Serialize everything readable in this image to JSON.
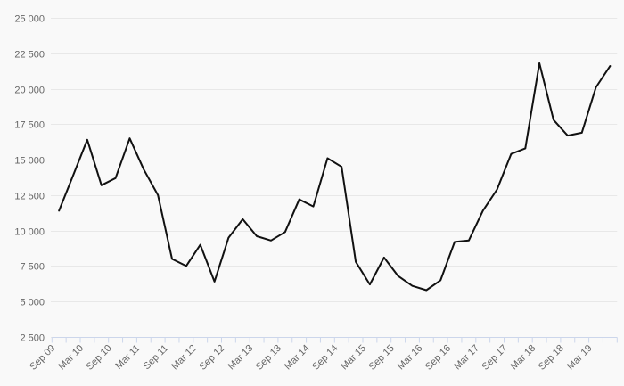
{
  "chart": {
    "background_color": "#f9f9f9",
    "grid_color": "#e8e8e8",
    "axis_color": "#ccd6eb",
    "label_color": "#666666",
    "series_color": "#111111"
  },
  "chart_data": {
    "type": "line",
    "title": "",
    "xlabel": "",
    "ylabel": "",
    "legend": false,
    "grid": true,
    "ylim": [
      2500,
      25000
    ],
    "y_ticks": [
      2500,
      5000,
      7500,
      10000,
      12500,
      15000,
      17500,
      20000,
      22500,
      25000
    ],
    "y_tick_labels": [
      "2 500",
      "5 000",
      "7 500",
      "10 000",
      "12 500",
      "15 000",
      "17 500",
      "20 000",
      "22 500",
      "25 000"
    ],
    "x_tick_labels": [
      "Sep 09",
      "Mar 10",
      "Sep 10",
      "Mar 11",
      "Sep 11",
      "Mar 12",
      "Sep 12",
      "Mar 13",
      "Sep 13",
      "Mar 14",
      "Sep 14",
      "Mar 15",
      "Sep 15",
      "Mar 16",
      "Sep 16",
      "Mar 17",
      "Sep 17",
      "Mar 18",
      "Sep 18",
      "Mar 19"
    ],
    "x_tick_placement": "between",
    "x": [
      "Sep 09",
      "Dec 09",
      "Mar 10",
      "Jun 10",
      "Sep 10",
      "Dec 10",
      "Mar 11",
      "Jun 11",
      "Sep 11",
      "Dec 11",
      "Mar 12",
      "Jun 12",
      "Sep 12",
      "Dec 12",
      "Mar 13",
      "Jun 13",
      "Sep 13",
      "Dec 13",
      "Mar 14",
      "Jun 14",
      "Sep 14",
      "Dec 14",
      "Mar 15",
      "Jun 15",
      "Sep 15",
      "Dec 15",
      "Mar 16",
      "Jun 16",
      "Sep 16",
      "Dec 16",
      "Mar 17",
      "Jun 17",
      "Sep 17",
      "Dec 17",
      "Mar 18",
      "Jun 18",
      "Sep 18",
      "Dec 18",
      "Mar 19",
      "Jun 19"
    ],
    "series": [
      {
        "name": "value",
        "values": [
          11400,
          13900,
          16400,
          13200,
          13700,
          16500,
          14300,
          12500,
          8000,
          7500,
          9000,
          6400,
          9500,
          10800,
          9600,
          9300,
          9900,
          12200,
          11700,
          15100,
          14500,
          7800,
          6200,
          8100,
          6800,
          6100,
          5800,
          6500,
          9200,
          9300,
          11400,
          12900,
          15400,
          15800,
          21800,
          17800,
          16700,
          16900,
          20100,
          21600
        ]
      }
    ]
  }
}
